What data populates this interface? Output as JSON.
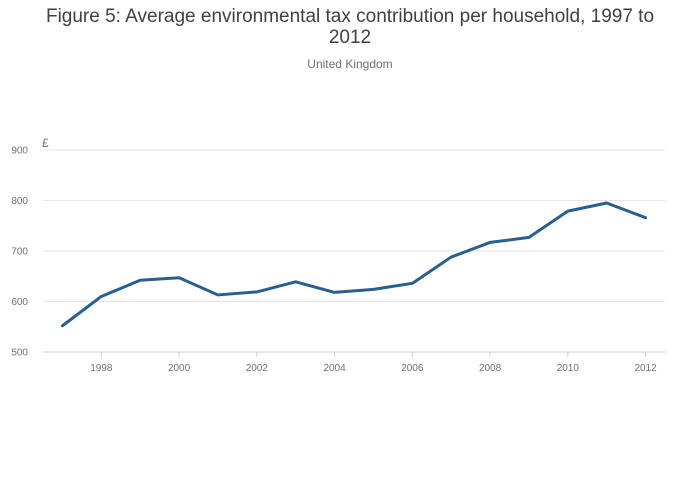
{
  "chart_data": {
    "type": "line",
    "title": "Figure 5: Average environmental tax contribution per household, 1997 to 2012",
    "subtitle": "United Kingdom",
    "ylabel": "£",
    "xlabel": "",
    "x": [
      1997,
      1998,
      1999,
      2000,
      2001,
      2002,
      2003,
      2004,
      2005,
      2006,
      2007,
      2008,
      2009,
      2010,
      2011,
      2012
    ],
    "series": [
      {
        "name": "",
        "color": "#27608f",
        "values": [
          552,
          610,
          642,
          647,
          613,
          619,
          639,
          618,
          624,
          636,
          688,
          717,
          727,
          779,
          795,
          766
        ]
      }
    ],
    "xlim": [
      1996.5,
      2012.5
    ],
    "ylim": [
      500,
      900
    ],
    "x_ticks": [
      1998,
      2000,
      2002,
      2004,
      2006,
      2008,
      2010,
      2012
    ],
    "y_ticks": [
      500,
      600,
      700,
      800,
      900
    ],
    "grid": "horizontal",
    "legend": "none"
  }
}
